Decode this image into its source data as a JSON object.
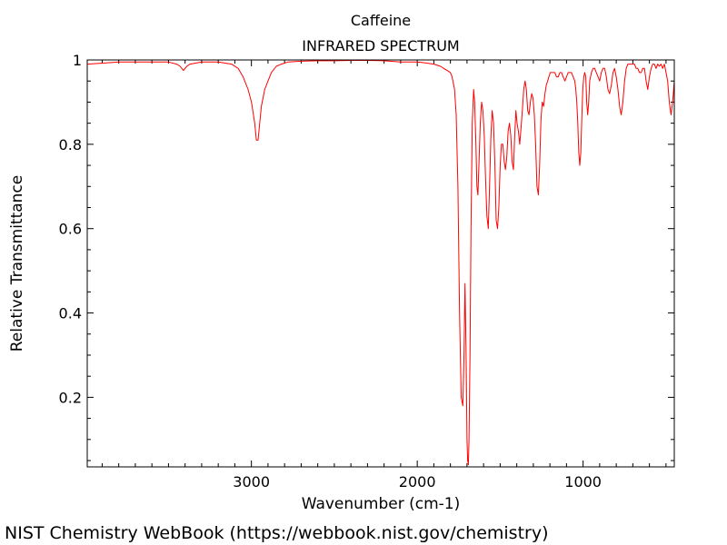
{
  "page": {
    "footer": "NIST Chemistry WebBook (https://webbook.nist.gov/chemistry)"
  },
  "chart_data": {
    "type": "line",
    "title": "Caffeine",
    "subtitle": "INFRARED SPECTRUM",
    "xlabel": "Wavenumber (cm-1)",
    "ylabel": "Relative Transmittance",
    "xlim": [
      3990,
      450
    ],
    "x_reversed": true,
    "ylim": [
      0.035,
      1.0
    ],
    "x_ticks": [
      3000,
      2000,
      1000
    ],
    "x_tick_labels": [
      "3000",
      "2000",
      "1000"
    ],
    "y_ticks": [
      0.2,
      0.4,
      0.6,
      0.8,
      1
    ],
    "y_tick_labels": [
      "0.2",
      "0.4",
      "0.6",
      "0.8",
      "1"
    ],
    "grid": false,
    "line_color": "#ff0000",
    "series": [
      {
        "x": [
          3990,
          3800,
          3600,
          3500,
          3450,
          3430,
          3410,
          3390,
          3370,
          3300,
          3200,
          3120,
          3080,
          3050,
          3020,
          3000,
          2980,
          2970,
          2960,
          2950,
          2940,
          2920,
          2900,
          2880,
          2850,
          2820,
          2780,
          2700,
          2600,
          2500,
          2400,
          2300,
          2200,
          2100,
          2000,
          1950,
          1900,
          1860,
          1840,
          1820,
          1800,
          1790,
          1775,
          1765,
          1755,
          1745,
          1735,
          1725,
          1718,
          1712,
          1706,
          1700,
          1696,
          1692,
          1688,
          1682,
          1676,
          1668,
          1660,
          1654,
          1646,
          1640,
          1634,
          1628,
          1620,
          1612,
          1604,
          1596,
          1588,
          1580,
          1572,
          1564,
          1556,
          1548,
          1540,
          1532,
          1524,
          1516,
          1508,
          1500,
          1492,
          1484,
          1476,
          1468,
          1460,
          1452,
          1444,
          1436,
          1428,
          1420,
          1412,
          1405,
          1398,
          1390,
          1382,
          1374,
          1366,
          1358,
          1350,
          1342,
          1334,
          1326,
          1318,
          1310,
          1302,
          1294,
          1286,
          1278,
          1270,
          1262,
          1254,
          1246,
          1238,
          1230,
          1222,
          1214,
          1206,
          1198,
          1190,
          1180,
          1170,
          1160,
          1150,
          1140,
          1130,
          1120,
          1110,
          1100,
          1090,
          1080,
          1070,
          1060,
          1050,
          1044,
          1038,
          1032,
          1026,
          1020,
          1014,
          1008,
          1002,
          996,
          990,
          984,
          978,
          972,
          966,
          960,
          950,
          940,
          930,
          920,
          910,
          900,
          890,
          880,
          870,
          860,
          850,
          840,
          830,
          820,
          810,
          800,
          790,
          780,
          770,
          760,
          750,
          740,
          730,
          720,
          710,
          700,
          690,
          680,
          670,
          660,
          650,
          640,
          630,
          620,
          610,
          600,
          590,
          580,
          570,
          560,
          550,
          540,
          530,
          520,
          510,
          500,
          490,
          480,
          470,
          460,
          450
        ],
        "y": [
          0.99,
          0.995,
          0.995,
          0.995,
          0.99,
          0.985,
          0.975,
          0.985,
          0.99,
          0.995,
          0.995,
          0.99,
          0.98,
          0.96,
          0.93,
          0.9,
          0.85,
          0.81,
          0.81,
          0.85,
          0.89,
          0.93,
          0.95,
          0.97,
          0.985,
          0.99,
          0.995,
          0.997,
          0.998,
          0.998,
          0.999,
          0.999,
          0.998,
          0.995,
          0.995,
          0.993,
          0.99,
          0.985,
          0.98,
          0.975,
          0.97,
          0.96,
          0.93,
          0.87,
          0.7,
          0.4,
          0.2,
          0.18,
          0.3,
          0.47,
          0.32,
          0.1,
          0.05,
          0.04,
          0.1,
          0.3,
          0.6,
          0.85,
          0.93,
          0.9,
          0.8,
          0.7,
          0.68,
          0.75,
          0.85,
          0.9,
          0.88,
          0.82,
          0.72,
          0.63,
          0.6,
          0.7,
          0.82,
          0.88,
          0.85,
          0.75,
          0.62,
          0.6,
          0.65,
          0.75,
          0.8,
          0.8,
          0.76,
          0.74,
          0.77,
          0.83,
          0.85,
          0.82,
          0.76,
          0.74,
          0.82,
          0.88,
          0.85,
          0.83,
          0.8,
          0.84,
          0.88,
          0.93,
          0.95,
          0.93,
          0.88,
          0.87,
          0.9,
          0.92,
          0.91,
          0.87,
          0.8,
          0.7,
          0.68,
          0.75,
          0.86,
          0.9,
          0.89,
          0.92,
          0.94,
          0.95,
          0.96,
          0.97,
          0.97,
          0.97,
          0.97,
          0.96,
          0.96,
          0.97,
          0.97,
          0.96,
          0.95,
          0.96,
          0.97,
          0.97,
          0.97,
          0.96,
          0.95,
          0.93,
          0.9,
          0.85,
          0.78,
          0.75,
          0.78,
          0.86,
          0.93,
          0.96,
          0.97,
          0.96,
          0.9,
          0.87,
          0.9,
          0.95,
          0.97,
          0.98,
          0.98,
          0.97,
          0.96,
          0.95,
          0.97,
          0.98,
          0.98,
          0.96,
          0.93,
          0.92,
          0.94,
          0.97,
          0.98,
          0.96,
          0.93,
          0.89,
          0.87,
          0.9,
          0.95,
          0.98,
          0.99,
          0.99,
          0.99,
          0.99,
          0.99,
          0.98,
          0.98,
          0.97,
          0.97,
          0.98,
          0.98,
          0.95,
          0.93,
          0.96,
          0.98,
          0.99,
          0.99,
          0.98,
          0.99,
          0.985,
          0.99,
          0.98,
          0.99,
          0.97,
          0.95,
          0.9,
          0.87,
          0.9,
          0.95
        ]
      }
    ]
  }
}
